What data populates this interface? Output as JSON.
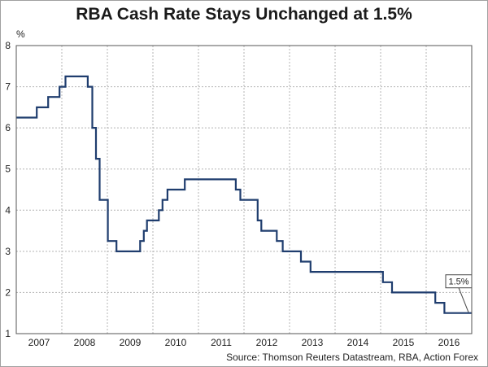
{
  "chart_data": {
    "type": "line",
    "title": "RBA Cash Rate Stays Unchanged at 1.5%",
    "ylabel": "%",
    "xlabel": "",
    "ylim": [
      1,
      8
    ],
    "yticks": [
      1,
      2,
      3,
      4,
      5,
      6,
      7,
      8
    ],
    "xlim": [
      2006.75,
      2016.75
    ],
    "xticks": [
      {
        "label": "2007",
        "value": 2007.25
      },
      {
        "label": "2008",
        "value": 2008.25
      },
      {
        "label": "2009",
        "value": 2009.25
      },
      {
        "label": "2010",
        "value": 2010.25
      },
      {
        "label": "2011",
        "value": 2011.25
      },
      {
        "label": "2012",
        "value": 2012.25
      },
      {
        "label": "2013",
        "value": 2013.25
      },
      {
        "label": "2014",
        "value": 2014.25
      },
      {
        "label": "2015",
        "value": 2015.25
      },
      {
        "label": "2016",
        "value": 2016.25
      }
    ],
    "grid": true,
    "series": [
      {
        "name": "RBA Cash Rate",
        "color": "#1f3d6e",
        "step": true,
        "points": [
          {
            "x": 2006.75,
            "y": 6.25
          },
          {
            "x": 2007.2,
            "y": 6.5
          },
          {
            "x": 2007.45,
            "y": 6.75
          },
          {
            "x": 2007.7,
            "y": 7.0
          },
          {
            "x": 2007.83,
            "y": 7.25
          },
          {
            "x": 2008.32,
            "y": 7.0
          },
          {
            "x": 2008.42,
            "y": 6.0
          },
          {
            "x": 2008.5,
            "y": 5.25
          },
          {
            "x": 2008.58,
            "y": 4.25
          },
          {
            "x": 2008.76,
            "y": 3.25
          },
          {
            "x": 2008.95,
            "y": 3.0
          },
          {
            "x": 2009.47,
            "y": 3.25
          },
          {
            "x": 2009.55,
            "y": 3.5
          },
          {
            "x": 2009.62,
            "y": 3.75
          },
          {
            "x": 2009.88,
            "y": 4.0
          },
          {
            "x": 2009.96,
            "y": 4.25
          },
          {
            "x": 2010.07,
            "y": 4.5
          },
          {
            "x": 2010.45,
            "y": 4.75
          },
          {
            "x": 2011.57,
            "y": 4.5
          },
          {
            "x": 2011.67,
            "y": 4.25
          },
          {
            "x": 2012.05,
            "y": 3.75
          },
          {
            "x": 2012.13,
            "y": 3.5
          },
          {
            "x": 2012.47,
            "y": 3.25
          },
          {
            "x": 2012.6,
            "y": 3.0
          },
          {
            "x": 2013.0,
            "y": 2.75
          },
          {
            "x": 2013.21,
            "y": 2.5
          },
          {
            "x": 2014.8,
            "y": 2.25
          },
          {
            "x": 2015.0,
            "y": 2.0
          },
          {
            "x": 2015.95,
            "y": 1.75
          },
          {
            "x": 2016.15,
            "y": 1.5
          },
          {
            "x": 2016.75,
            "y": 1.5
          }
        ]
      }
    ],
    "annotations": [
      {
        "text": "1.5%",
        "x": 2016.75,
        "y": 1.5
      }
    ],
    "source": "Source: Thomson Reuters Datastream, RBA, Action Forex"
  }
}
